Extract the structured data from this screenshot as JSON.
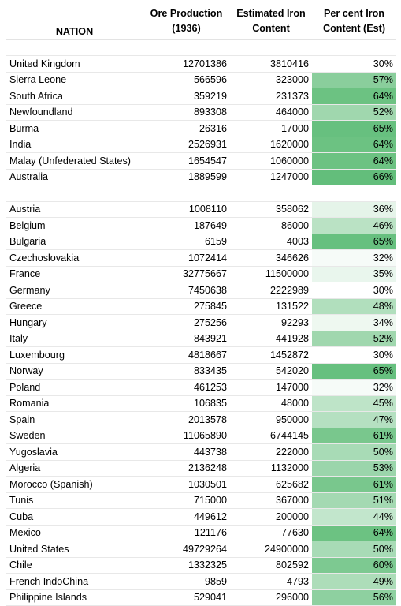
{
  "headers": {
    "nation": "NATION",
    "ore_line1": "Ore Production",
    "ore_line2": "(1936)",
    "iron_line1": "Estimated Iron",
    "iron_line2": "Content",
    "pct_line1": "Per cent Iron",
    "pct_line2": "Content (Est)"
  },
  "scale_colors": {
    "low": "#ffffff",
    "high": "#63be7b"
  },
  "scale_range": [
    30,
    66
  ],
  "groups": [
    [
      {
        "nation": "United Kingdom",
        "ore": "12701386",
        "iron": "3810416",
        "pct": "30%",
        "p": 30
      },
      {
        "nation": "Sierra Leone",
        "ore": "566596",
        "iron": "323000",
        "pct": "57%",
        "p": 57
      },
      {
        "nation": "South Africa",
        "ore": "359219",
        "iron": "231373",
        "pct": "64%",
        "p": 64
      },
      {
        "nation": "Newfoundland",
        "ore": "893308",
        "iron": "464000",
        "pct": "52%",
        "p": 52
      },
      {
        "nation": "Burma",
        "ore": "26316",
        "iron": "17000",
        "pct": "65%",
        "p": 65
      },
      {
        "nation": "India",
        "ore": "2526931",
        "iron": "1620000",
        "pct": "64%",
        "p": 64
      },
      {
        "nation": "Malay (Unfederated States)",
        "ore": "1654547",
        "iron": "1060000",
        "pct": "64%",
        "p": 64
      },
      {
        "nation": "Australia",
        "ore": "1889599",
        "iron": "1247000",
        "pct": "66%",
        "p": 66
      }
    ],
    [
      {
        "nation": "Austria",
        "ore": "1008110",
        "iron": "358062",
        "pct": "36%",
        "p": 36
      },
      {
        "nation": "Belgium",
        "ore": "187649",
        "iron": "86000",
        "pct": "46%",
        "p": 46
      },
      {
        "nation": "Bulgaria",
        "ore": "6159",
        "iron": "4003",
        "pct": "65%",
        "p": 65
      },
      {
        "nation": "Czechoslovakia",
        "ore": "1072414",
        "iron": "346626",
        "pct": "32%",
        "p": 32
      },
      {
        "nation": "France",
        "ore": "32775667",
        "iron": "11500000",
        "pct": "35%",
        "p": 35
      },
      {
        "nation": "Germany",
        "ore": "7450638",
        "iron": "2222989",
        "pct": "30%",
        "p": 30
      },
      {
        "nation": "Greece",
        "ore": "275845",
        "iron": "131522",
        "pct": "48%",
        "p": 48
      },
      {
        "nation": "Hungary",
        "ore": "275256",
        "iron": "92293",
        "pct": "34%",
        "p": 34
      },
      {
        "nation": "Italy",
        "ore": "843921",
        "iron": "441928",
        "pct": "52%",
        "p": 52
      },
      {
        "nation": "Luxembourg",
        "ore": "4818667",
        "iron": "1452872",
        "pct": "30%",
        "p": 30
      },
      {
        "nation": "Norway",
        "ore": "833435",
        "iron": "542020",
        "pct": "65%",
        "p": 65
      },
      {
        "nation": "Poland",
        "ore": "461253",
        "iron": "147000",
        "pct": "32%",
        "p": 32
      },
      {
        "nation": "Romania",
        "ore": "106835",
        "iron": "48000",
        "pct": "45%",
        "p": 45
      },
      {
        "nation": "Spain",
        "ore": "2013578",
        "iron": "950000",
        "pct": "47%",
        "p": 47
      },
      {
        "nation": "Sweden",
        "ore": "11065890",
        "iron": "6744145",
        "pct": "61%",
        "p": 61
      },
      {
        "nation": "Yugoslavia",
        "ore": "443738",
        "iron": "222000",
        "pct": "50%",
        "p": 50
      },
      {
        "nation": "Algeria",
        "ore": "2136248",
        "iron": "1132000",
        "pct": "53%",
        "p": 53
      },
      {
        "nation": "Morocco (Spanish)",
        "ore": "1030501",
        "iron": "625682",
        "pct": "61%",
        "p": 61
      },
      {
        "nation": "Tunis",
        "ore": "715000",
        "iron": "367000",
        "pct": "51%",
        "p": 51
      },
      {
        "nation": "Cuba",
        "ore": "449612",
        "iron": "200000",
        "pct": "44%",
        "p": 44
      },
      {
        "nation": "Mexico",
        "ore": "121176",
        "iron": "77630",
        "pct": "64%",
        "p": 64
      },
      {
        "nation": "United States",
        "ore": "49729264",
        "iron": "24900000",
        "pct": "50%",
        "p": 50
      },
      {
        "nation": "Chile",
        "ore": "1332325",
        "iron": "802592",
        "pct": "60%",
        "p": 60
      },
      {
        "nation": "French IndoChina",
        "ore": "9859",
        "iron": "4793",
        "pct": "49%",
        "p": 49
      },
      {
        "nation": "Philippine Islands",
        "ore": "529041",
        "iron": "296000",
        "pct": "56%",
        "p": 56
      }
    ]
  ]
}
